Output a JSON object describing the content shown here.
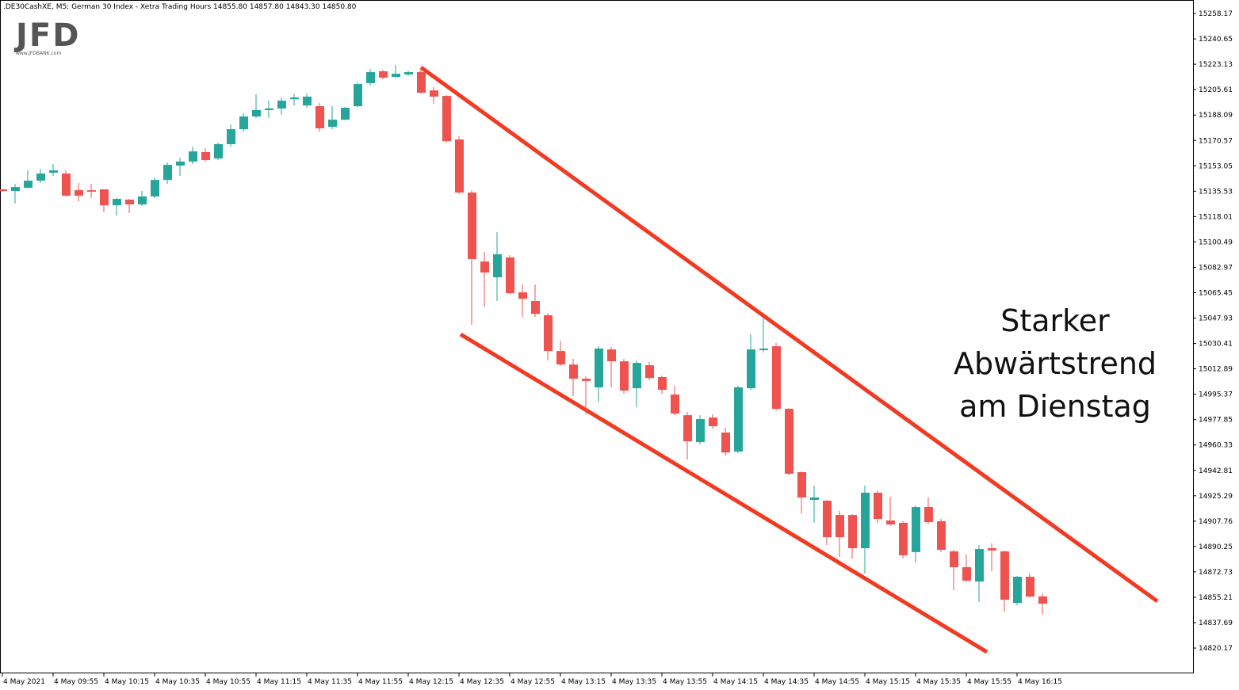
{
  "chart_data": {
    "type": "candlestick",
    "title": ".DE30CashXE, M5:  German 30 Index  - Xetra Trading Hours  14855.80 14857.80 14843.30 14850.80",
    "logo": "JFD",
    "logo_url": "www.JFDBANK.com",
    "annotation": [
      "Starker",
      "Abwärtstrend",
      "am Dienstag"
    ],
    "up_color": "#26a69a",
    "down_color": "#ef5350",
    "categories": [
      "4 May 2021",
      null,
      null,
      null,
      "4 May 09:55",
      null,
      null,
      null,
      "4 May 10:15",
      null,
      null,
      null,
      "4 May 10:35",
      null,
      null,
      null,
      "4 May 10:55",
      null,
      null,
      null,
      "4 May 11:15",
      null,
      null,
      null,
      "4 May 11:35",
      null,
      null,
      null,
      "4 May 11:55",
      null,
      null,
      null,
      "4 May 12:15",
      null,
      null,
      null,
      "4 May 12:35",
      null,
      null,
      null,
      "4 May 12:55",
      null,
      null,
      null,
      "4 May 13:15",
      null,
      null,
      null,
      "4 May 13:35",
      null,
      null,
      null,
      "4 May 13:55",
      null,
      null,
      null,
      "4 May 14:15",
      null,
      null,
      null,
      "4 May 14:35",
      null,
      null,
      null,
      "4 May 14:55",
      null,
      null,
      null,
      "4 May 15:15",
      null,
      null,
      null,
      "4 May 15:35",
      null,
      null,
      null,
      "4 May 15:55",
      null,
      null,
      null,
      "4 May 16:15",
      null,
      null
    ],
    "open": [
      15136.8,
      15135.7,
      15137.9,
      15142.8,
      15148.3,
      15147.7,
      15136.2,
      15136.2,
      15136.8,
      15125.8,
      15129.7,
      15126.4,
      15131.9,
      15143.3,
      15153.2,
      15156.0,
      15162.5,
      15158.1,
      15168.0,
      15178.3,
      15187.1,
      15191.5,
      15192.6,
      15199.1,
      15194.7,
      15194.2,
      15180.0,
      15184.9,
      15194.2,
      15210.1,
      15218.3,
      15214.4,
      15216.1,
      15217.7,
      15205.1,
      15201.3,
      15171.2,
      15134.6,
      15087.0,
      15076.1,
      15089.8,
      15065.7,
      15059.7,
      15049.9,
      15025.2,
      15015.9,
      15006.1,
      15000.1,
      15026.3,
      15018.1,
      14999.5,
      15015.4,
      15007.2,
      14995.2,
      14980.9,
      14962.3,
      14979.3,
      14968.9,
      14955.8,
      14999.5,
      15025.8,
      15028.5,
      14985.3,
      14941.6,
      14922.4,
      14921.9,
      14912.0,
      14912.0,
      14889.1,
      14927.4,
      14908.2,
      14906.6,
      14886.4,
      14917.5,
      14907.7,
      14886.9,
      14876.0,
      14866.1,
      14889.1,
      14886.9,
      14851.3,
      14869.4,
      14855.8
    ],
    "high": [
      15137.3,
      15140.6,
      15149.9,
      15151.0,
      15154.3,
      15149.9,
      15141.2,
      15140.6,
      15136.8,
      15130.8,
      15130.2,
      15135.7,
      15145.0,
      15155.4,
      15158.7,
      15166.3,
      15165.2,
      15169.1,
      15181.6,
      15189.3,
      15202.4,
      15198.0,
      15200.2,
      15202.9,
      15202.9,
      15196.4,
      15194.2,
      15193.6,
      15210.6,
      15219.9,
      15219.3,
      15222.6,
      15218.8,
      15221.0,
      15207.3,
      15201.9,
      15173.4,
      15136.2,
      15093.6,
      15107.2,
      15091.4,
      15071.2,
      15071.2,
      15051.5,
      15032.3,
      15019.8,
      15007.7,
      15028.5,
      15028.0,
      15019.8,
      15018.7,
      15017.6,
      15008.3,
      15001.2,
      14983.1,
      14980.9,
      14981.5,
      14972.2,
      15001.2,
      15036.7,
      15048.8,
      15030.7,
      14985.9,
      14942.1,
      14932.3,
      14922.4,
      14914.8,
      14912.6,
      14932.3,
      14929.0,
      14924.6,
      14907.7,
      14918.6,
      14924.1,
      14909.3,
      14888.0,
      14884.7,
      14891.3,
      14892.4,
      14887.5,
      14869.9,
      14871.6,
      14857.8
    ],
    "low": [
      15135.2,
      15127.0,
      15137.3,
      15141.2,
      15146.1,
      15131.9,
      15128.6,
      15130.8,
      15120.9,
      15118.7,
      15120.4,
      15125.3,
      15130.8,
      15140.6,
      15146.1,
      15154.3,
      15156.0,
      15157.0,
      15166.3,
      15176.7,
      15186.0,
      15186.0,
      15188.2,
      15194.7,
      15193.1,
      15176.7,
      15178.3,
      15184.4,
      15193.6,
      15208.4,
      15212.8,
      15213.9,
      15215.0,
      15202.9,
      15195.8,
      15169.1,
      15133.5,
      15043.3,
      15055.9,
      15059.7,
      15064.1,
      15048.8,
      15048.8,
      15018.7,
      15014.9,
      14994.1,
      14981.5,
      14990.2,
      15000.1,
      14995.7,
      14986.4,
      15005.0,
      14995.7,
      14980.9,
      14950.3,
      14960.7,
      14971.6,
      14953.1,
      14954.7,
      14998.4,
      15024.1,
      14984.2,
      14939.4,
      14913.1,
      14906.6,
      14891.3,
      14883.1,
      14882.0,
      14871.6,
      14906.6,
      14904.4,
      14882.0,
      14879.3,
      14906.0,
      14886.4,
      14860.1,
      14865.6,
      14851.9,
      14873.2,
      14845.3,
      14849.7,
      14855.2,
      14843.3
    ],
    "close": [
      15135.7,
      15138.4,
      15142.8,
      15147.7,
      15149.9,
      15132.4,
      15132.4,
      15135.2,
      15125.8,
      15130.2,
      15126.4,
      15131.9,
      15143.3,
      15153.7,
      15156.0,
      15163.0,
      15157.0,
      15168.0,
      15178.3,
      15187.1,
      15191.5,
      15192.6,
      15198.0,
      15200.2,
      15200.8,
      15178.9,
      15184.9,
      15193.1,
      15209.5,
      15217.7,
      15213.9,
      15216.6,
      15217.7,
      15203.5,
      15200.8,
      15170.1,
      15134.6,
      15088.7,
      15079.4,
      15092.0,
      15065.1,
      15061.3,
      15050.9,
      15025.2,
      15015.9,
      15006.1,
      15004.5,
      15026.9,
      15018.1,
      14997.9,
      15017.0,
      15006.6,
      14998.4,
      14982.0,
      14962.9,
      14978.2,
      14973.3,
      14955.2,
      15000.1,
      15026.3,
      15026.9,
      14985.3,
      14940.5,
      14924.1,
      14924.1,
      14896.7,
      14896.7,
      14889.1,
      14927.4,
      14909.3,
      14905.5,
      14884.2,
      14917.5,
      14907.1,
      14888.0,
      14876.0,
      14866.7,
      14888.5,
      14887.5,
      14853.5,
      14869.4,
      14855.7,
      14850.8
    ],
    "ylim": [
      14802.7,
      15267.5
    ],
    "yticks": [
      15258.17,
      15240.65,
      15223.13,
      15205.61,
      15188.09,
      15170.57,
      15153.05,
      15135.53,
      15118.01,
      15100.49,
      15082.97,
      15065.45,
      15047.93,
      15030.41,
      15012.89,
      14995.37,
      14977.85,
      14960.33,
      14942.81,
      14925.29,
      14907.76,
      14890.25,
      14872.73,
      14855.21,
      14837.69,
      14820.17
    ]
  }
}
